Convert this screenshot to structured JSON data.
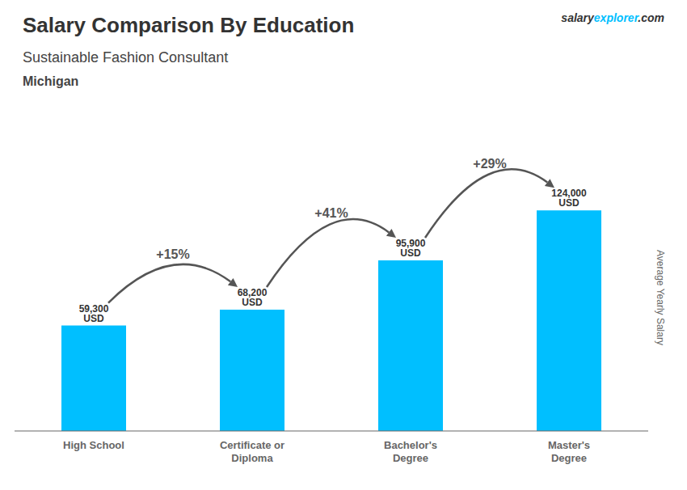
{
  "chart_data": {
    "type": "bar",
    "title": "Salary Comparison By Education",
    "subtitle": "Sustainable Fashion Consultant",
    "ylabel": "Average Yearly Salary",
    "categories": [
      "High School",
      "Certificate or\nDiploma",
      "Bachelor's\nDegree",
      "Master's\nDegree"
    ],
    "values": [
      59300,
      68200,
      95900,
      124000
    ],
    "value_labels": [
      "59,300 USD",
      "68,200 USD",
      "95,900 USD",
      "124,000 USD"
    ],
    "data_labels": true,
    "color": "#00BFFF",
    "ylim": [
      0,
      150000
    ],
    "tick_labels": "x",
    "grid": false,
    "annotations": {
      "location": "Michigan",
      "brand": [
        "salary",
        "explorer",
        ".com"
      ],
      "changes": [
        "+15%",
        "+41%",
        "+29%"
      ]
    }
  }
}
